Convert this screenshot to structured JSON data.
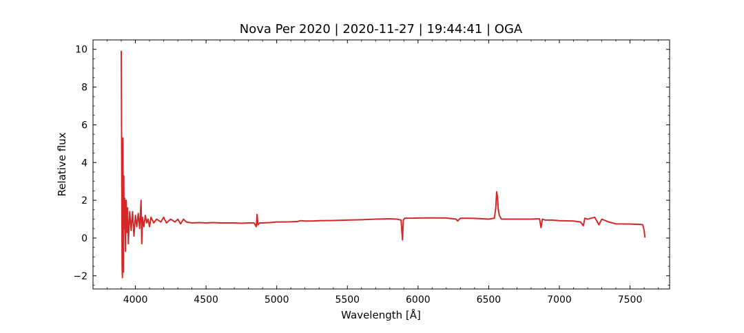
{
  "chart_data": {
    "type": "line",
    "title": "Nova Per 2020 | 2020-11-27 | 19:44:41 | OGA",
    "xlabel": "Wavelength [Å]",
    "ylabel": "Relative flux",
    "xlim": [
      3700,
      7780
    ],
    "ylim": [
      -2.7,
      10.5
    ],
    "xticks": [
      4000,
      4500,
      5000,
      5500,
      6000,
      6500,
      7000,
      7500
    ],
    "yticks": [
      -2,
      0,
      2,
      4,
      6,
      8,
      10
    ],
    "xtick_labels": [
      "4000",
      "4500",
      "5000",
      "5500",
      "6000",
      "6500",
      "7000",
      "7500"
    ],
    "ytick_labels": [
      "−2",
      "0",
      "2",
      "4",
      "6",
      "8",
      "10"
    ],
    "grid": false,
    "series": [
      {
        "color": "#d62728",
        "x": [
          3900,
          3902,
          3904,
          3906,
          3908,
          3910,
          3912,
          3914,
          3916,
          3918,
          3920,
          3925,
          3930,
          3935,
          3940,
          3945,
          3950,
          3960,
          3970,
          3980,
          3990,
          4000,
          4010,
          4020,
          4030,
          4040,
          4045,
          4050,
          4060,
          4070,
          4080,
          4090,
          4100,
          4110,
          4130,
          4150,
          4180,
          4200,
          4220,
          4250,
          4280,
          4300,
          4320,
          4340,
          4360,
          4400,
          4450,
          4500,
          4550,
          4600,
          4650,
          4700,
          4750,
          4800,
          4840,
          4855,
          4861,
          4867,
          4880,
          4900,
          4950,
          5000,
          5050,
          5100,
          5150,
          5170,
          5200,
          5250,
          5300,
          5400,
          5500,
          5600,
          5700,
          5800,
          5850,
          5880,
          5890,
          5896,
          5905,
          5950,
          6000,
          6100,
          6200,
          6270,
          6280,
          6300,
          6400,
          6500,
          6540,
          6550,
          6556,
          6562,
          6568,
          6575,
          6590,
          6620,
          6700,
          6800,
          6860,
          6870,
          6880,
          6900,
          6950,
          7000,
          7100,
          7150,
          7170,
          7180,
          7200,
          7250,
          7280,
          7300,
          7350,
          7400,
          7500,
          7580,
          7590,
          7600,
          7605
        ],
        "y": [
          9.9,
          6.0,
          2.0,
          -1.5,
          -2.1,
          1.5,
          5.3,
          0.2,
          -1.8,
          3.3,
          0.5,
          2.1,
          -0.7,
          2.0,
          0.3,
          1.6,
          -0.3,
          1.4,
          0.4,
          1.4,
          0.1,
          1.2,
          0.6,
          1.3,
          0.5,
          2.0,
          -0.3,
          1.1,
          0.6,
          1.2,
          0.8,
          1.0,
          0.6,
          1.1,
          0.8,
          1.0,
          0.85,
          1.1,
          0.8,
          1.0,
          0.85,
          1.0,
          0.75,
          1.0,
          0.85,
          0.8,
          0.82,
          0.8,
          0.82,
          0.8,
          0.8,
          0.8,
          0.78,
          0.8,
          0.8,
          0.6,
          1.25,
          0.7,
          0.8,
          0.8,
          0.82,
          0.85,
          0.85,
          0.86,
          0.88,
          0.92,
          0.9,
          0.9,
          0.92,
          0.93,
          0.95,
          0.97,
          1.0,
          1.02,
          1.0,
          0.95,
          -0.1,
          0.95,
          1.05,
          1.05,
          1.06,
          1.07,
          1.06,
          1.0,
          0.9,
          1.05,
          1.04,
          1.0,
          1.05,
          1.6,
          2.45,
          2.2,
          1.5,
          1.2,
          1.0,
          1.0,
          1.0,
          1.0,
          1.02,
          0.55,
          1.0,
          0.95,
          0.95,
          0.92,
          0.9,
          0.85,
          0.65,
          1.05,
          1.0,
          1.1,
          0.7,
          1.0,
          0.85,
          0.75,
          0.74,
          0.72,
          0.7,
          0.4,
          0.05
        ]
      }
    ]
  }
}
